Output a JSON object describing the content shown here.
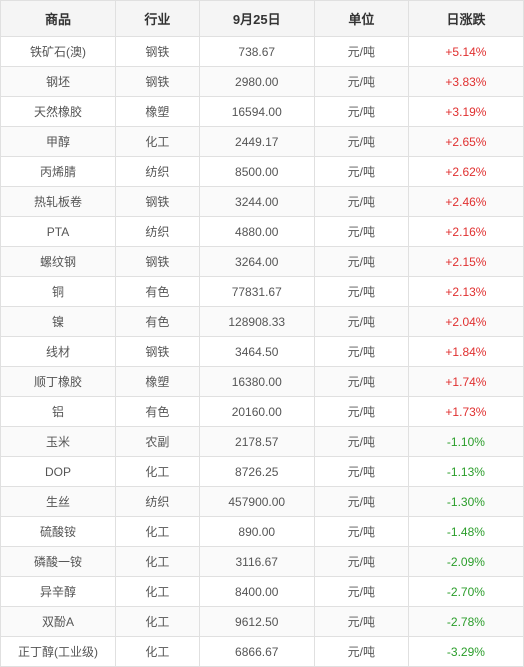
{
  "table": {
    "header_bg": "#f5f5f5",
    "border_color": "#e0e0e0",
    "odd_row_bg": "#ffffff",
    "even_row_bg": "#fafafa",
    "text_color": "#555555",
    "header_text_color": "#333333",
    "positive_color": "#e03030",
    "negative_color": "#2a9d2a",
    "header_fontsize": 13,
    "cell_fontsize": 12,
    "columns": [
      {
        "key": "commodity",
        "label": "商品"
      },
      {
        "key": "industry",
        "label": "行业"
      },
      {
        "key": "price",
        "label": "9月25日"
      },
      {
        "key": "unit",
        "label": "单位"
      },
      {
        "key": "change",
        "label": "日涨跌"
      }
    ],
    "rows": [
      {
        "commodity": "铁矿石(澳)",
        "industry": "钢铁",
        "price": "738.67",
        "unit": "元/吨",
        "change": "+5.14%",
        "direction": "positive"
      },
      {
        "commodity": "钢坯",
        "industry": "钢铁",
        "price": "2980.00",
        "unit": "元/吨",
        "change": "+3.83%",
        "direction": "positive"
      },
      {
        "commodity": "天然橡胶",
        "industry": "橡塑",
        "price": "16594.00",
        "unit": "元/吨",
        "change": "+3.19%",
        "direction": "positive"
      },
      {
        "commodity": "甲醇",
        "industry": "化工",
        "price": "2449.17",
        "unit": "元/吨",
        "change": "+2.65%",
        "direction": "positive"
      },
      {
        "commodity": "丙烯腈",
        "industry": "纺织",
        "price": "8500.00",
        "unit": "元/吨",
        "change": "+2.62%",
        "direction": "positive"
      },
      {
        "commodity": "热轧板卷",
        "industry": "钢铁",
        "price": "3244.00",
        "unit": "元/吨",
        "change": "+2.46%",
        "direction": "positive"
      },
      {
        "commodity": "PTA",
        "industry": "纺织",
        "price": "4880.00",
        "unit": "元/吨",
        "change": "+2.16%",
        "direction": "positive"
      },
      {
        "commodity": "螺纹钢",
        "industry": "钢铁",
        "price": "3264.00",
        "unit": "元/吨",
        "change": "+2.15%",
        "direction": "positive"
      },
      {
        "commodity": "铜",
        "industry": "有色",
        "price": "77831.67",
        "unit": "元/吨",
        "change": "+2.13%",
        "direction": "positive"
      },
      {
        "commodity": "镍",
        "industry": "有色",
        "price": "128908.33",
        "unit": "元/吨",
        "change": "+2.04%",
        "direction": "positive"
      },
      {
        "commodity": "线材",
        "industry": "钢铁",
        "price": "3464.50",
        "unit": "元/吨",
        "change": "+1.84%",
        "direction": "positive"
      },
      {
        "commodity": "顺丁橡胶",
        "industry": "橡塑",
        "price": "16380.00",
        "unit": "元/吨",
        "change": "+1.74%",
        "direction": "positive"
      },
      {
        "commodity": "铝",
        "industry": "有色",
        "price": "20160.00",
        "unit": "元/吨",
        "change": "+1.73%",
        "direction": "positive"
      },
      {
        "commodity": "玉米",
        "industry": "农副",
        "price": "2178.57",
        "unit": "元/吨",
        "change": "-1.10%",
        "direction": "negative"
      },
      {
        "commodity": "DOP",
        "industry": "化工",
        "price": "8726.25",
        "unit": "元/吨",
        "change": "-1.13%",
        "direction": "negative"
      },
      {
        "commodity": "生丝",
        "industry": "纺织",
        "price": "457900.00",
        "unit": "元/吨",
        "change": "-1.30%",
        "direction": "negative"
      },
      {
        "commodity": "硫酸铵",
        "industry": "化工",
        "price": "890.00",
        "unit": "元/吨",
        "change": "-1.48%",
        "direction": "negative"
      },
      {
        "commodity": "磷酸一铵",
        "industry": "化工",
        "price": "3116.67",
        "unit": "元/吨",
        "change": "-2.09%",
        "direction": "negative"
      },
      {
        "commodity": "异辛醇",
        "industry": "化工",
        "price": "8400.00",
        "unit": "元/吨",
        "change": "-2.70%",
        "direction": "negative"
      },
      {
        "commodity": "双酚A",
        "industry": "化工",
        "price": "9612.50",
        "unit": "元/吨",
        "change": "-2.78%",
        "direction": "negative"
      },
      {
        "commodity": "正丁醇(工业级)",
        "industry": "化工",
        "price": "6866.67",
        "unit": "元/吨",
        "change": "-3.29%",
        "direction": "negative"
      }
    ]
  }
}
